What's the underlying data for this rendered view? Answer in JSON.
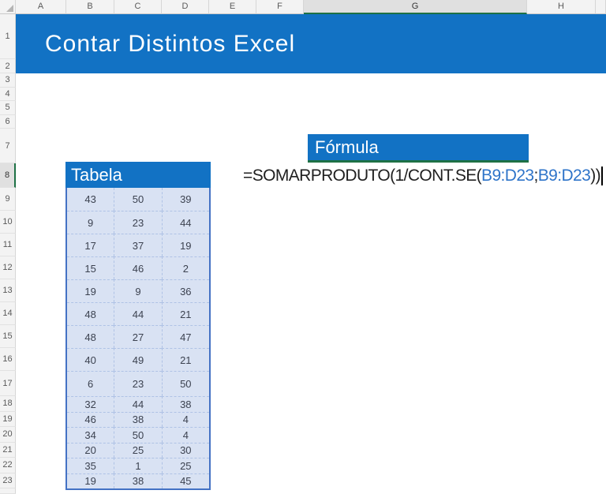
{
  "banner": {
    "title": "Contar Distintos Excel"
  },
  "grid": {
    "column_headers": [
      "A",
      "B",
      "C",
      "D",
      "E",
      "F",
      "G",
      "H"
    ],
    "selected_column": "G",
    "row_headers": [
      1,
      2,
      3,
      4,
      5,
      6,
      7,
      8,
      9,
      10,
      11,
      12,
      13,
      14,
      15,
      16,
      17,
      18,
      19,
      20,
      21,
      22,
      23
    ],
    "selected_row": 8
  },
  "formula_section": {
    "label": "Fórmula",
    "full_formula": "=SOMARPRODUTO(1/CONT.SE(B9:D23;B9:D23))",
    "parts": [
      {
        "text": "=SOMARPRODUTO(1/CONT.SE(",
        "color": "dark"
      },
      {
        "text": "B9:D23",
        "color": "blue"
      },
      {
        "text": ";",
        "color": "dark"
      },
      {
        "text": "B9:D23",
        "color": "blue"
      },
      {
        "text": "))",
        "color": "dark"
      }
    ]
  },
  "table_section": {
    "label": "Tabela",
    "rows": [
      [
        43,
        50,
        39
      ],
      [
        9,
        23,
        44
      ],
      [
        17,
        37,
        19
      ],
      [
        15,
        46,
        2
      ],
      [
        19,
        9,
        36
      ],
      [
        48,
        44,
        21
      ],
      [
        48,
        27,
        47
      ],
      [
        40,
        49,
        21
      ],
      [
        6,
        23,
        50
      ],
      [
        32,
        44,
        38
      ],
      [
        46,
        38,
        4
      ],
      [
        34,
        50,
        4
      ],
      [
        20,
        25,
        30
      ],
      [
        35,
        1,
        25
      ],
      [
        19,
        38,
        45
      ]
    ]
  },
  "colors": {
    "accent_blue": "#1272C4",
    "selection_green": "#1E7145",
    "table_fill": "#D9E2F3",
    "table_border": "#4472C4",
    "range_ref_blue": "#2E74C9",
    "formula_text_dark": "#202020"
  }
}
